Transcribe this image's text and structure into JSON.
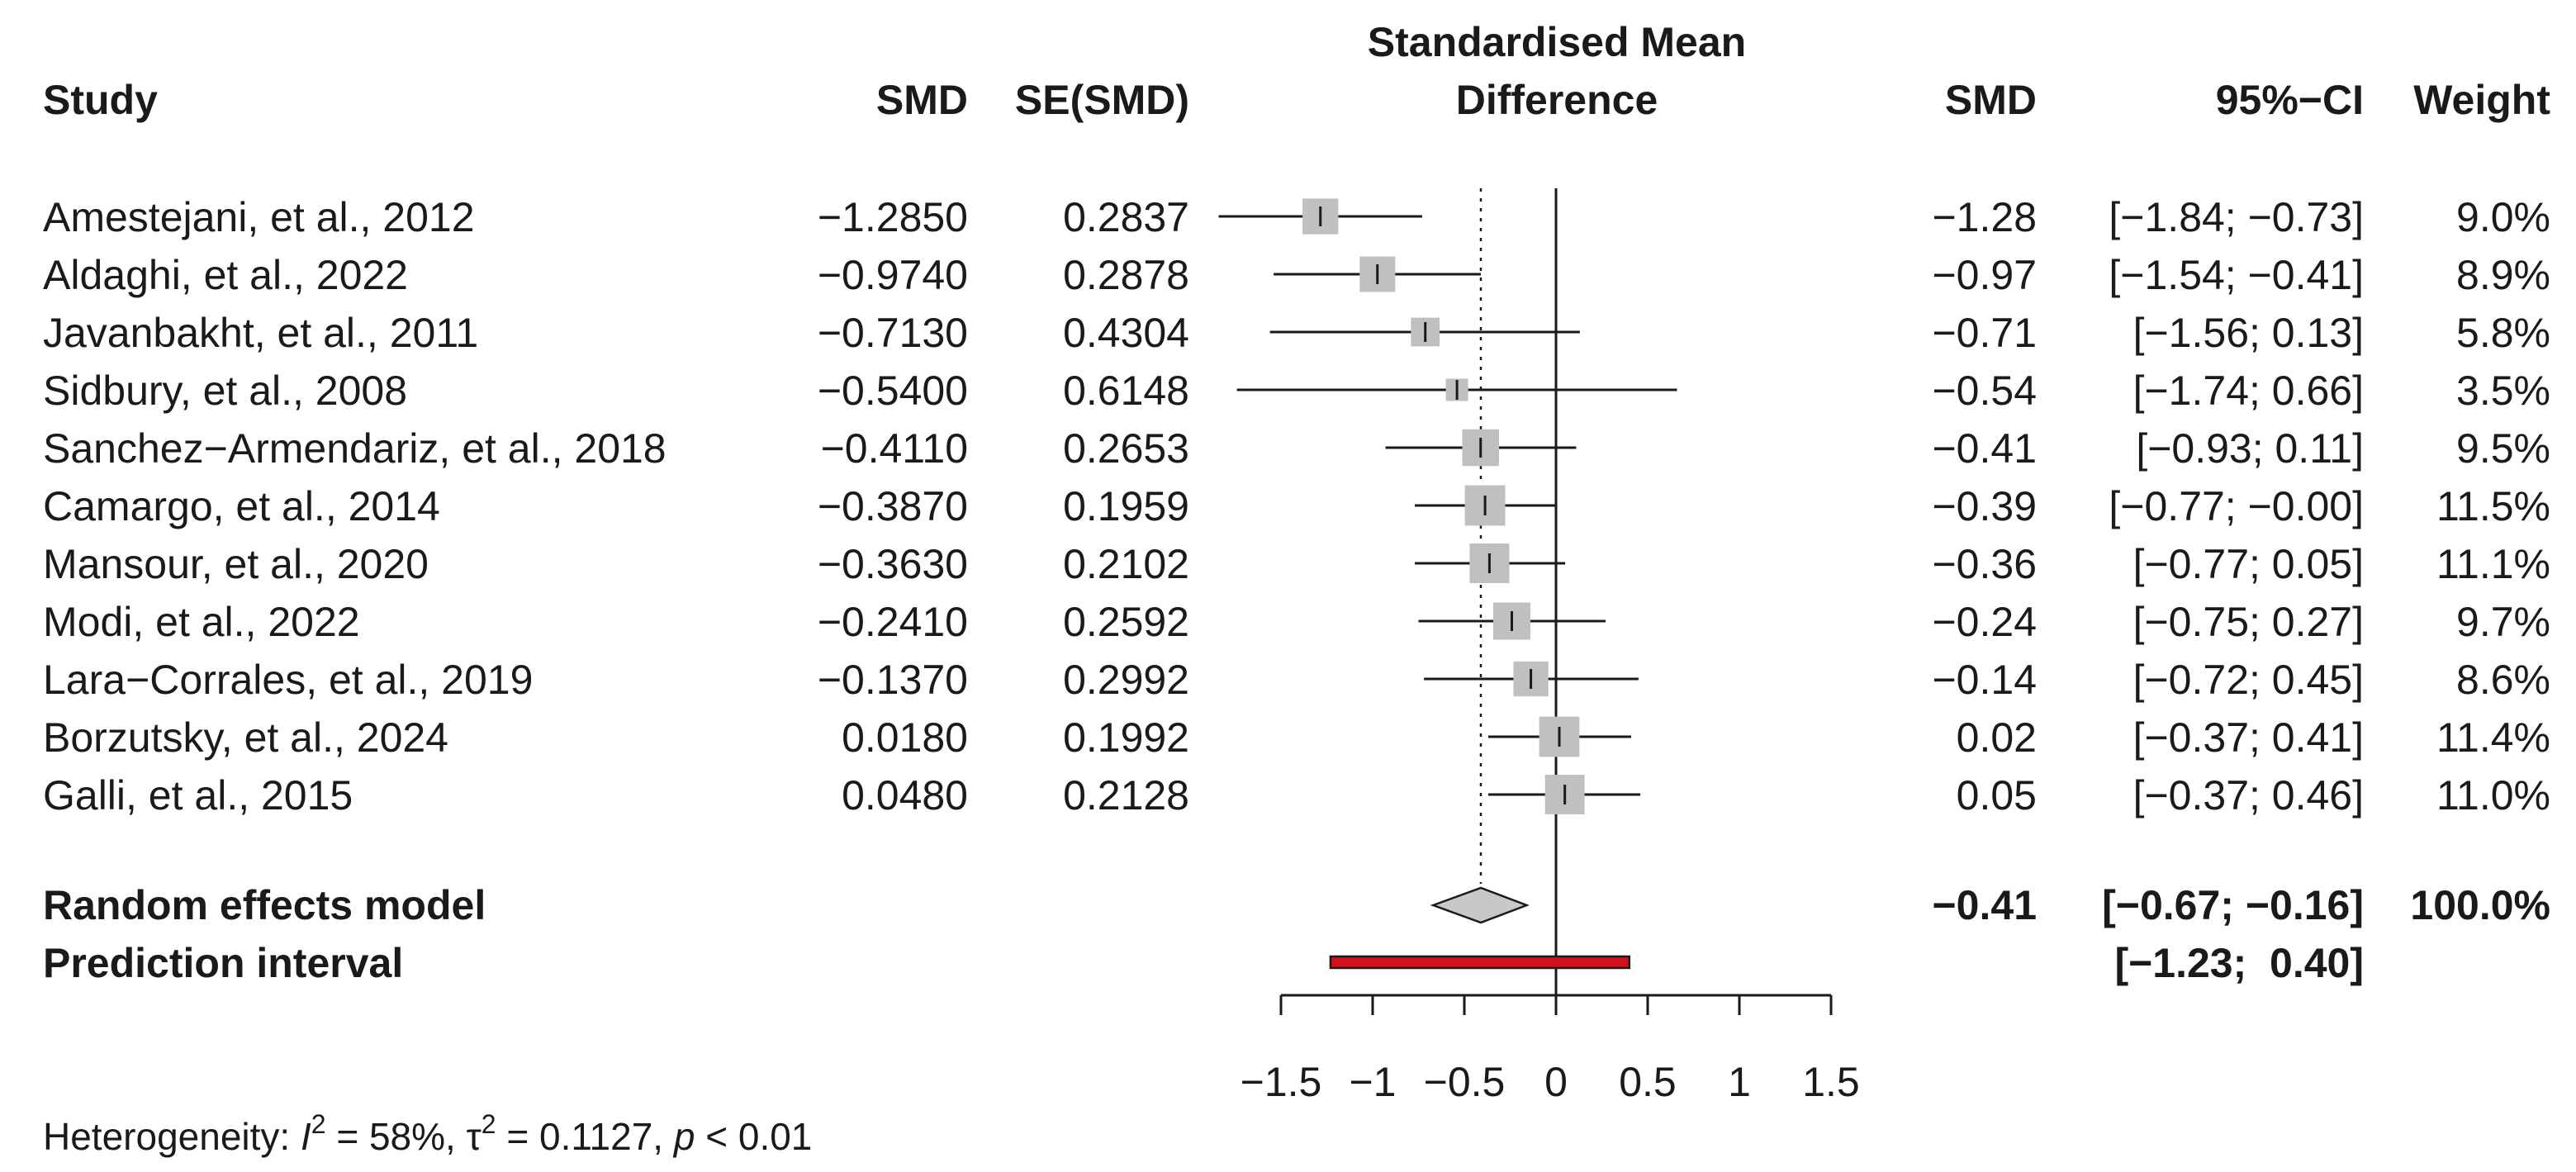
{
  "chart_data": {
    "type": "forest",
    "title": "Standardised Mean Difference",
    "headers": {
      "study": "Study",
      "smd": "SMD",
      "se": "SE(SMD)",
      "plot_line1": "Standardised Mean",
      "plot_line2": "Difference",
      "smd_right": "SMD",
      "ci": "95%−CI",
      "weight": "Weight"
    },
    "studies": [
      {
        "name": "Amestejani, et al., 2012",
        "smd": "−1.2850",
        "se": "0.2837",
        "smd_r": "−1.28",
        "ci": "[−1.84; −0.73]",
        "weight": "9.0%",
        "est": -1.285,
        "lo": -1.84,
        "hi": -0.73,
        "w": 9.0
      },
      {
        "name": "Aldaghi, et al., 2022",
        "smd": "−0.9740",
        "se": "0.2878",
        "smd_r": "−0.97",
        "ci": "[−1.54; −0.41]",
        "weight": "8.9%",
        "est": -0.974,
        "lo": -1.54,
        "hi": -0.41,
        "w": 8.9
      },
      {
        "name": "Javanbakht, et al., 2011",
        "smd": "−0.7130",
        "se": "0.4304",
        "smd_r": "−0.71",
        "ci": "[−1.56;  0.13]",
        "weight": "5.8%",
        "est": -0.713,
        "lo": -1.56,
        "hi": 0.13,
        "w": 5.8
      },
      {
        "name": "Sidbury, et al., 2008",
        "smd": "−0.5400",
        "se": "0.6148",
        "smd_r": "−0.54",
        "ci": "[−1.74;  0.66]",
        "weight": "3.5%",
        "est": -0.54,
        "lo": -1.74,
        "hi": 0.66,
        "w": 3.5
      },
      {
        "name": "Sanchez−Armendariz, et al., 2018",
        "smd": "−0.4110",
        "se": "0.2653",
        "smd_r": "−0.41",
        "ci": "[−0.93;  0.11]",
        "weight": "9.5%",
        "est": -0.411,
        "lo": -0.93,
        "hi": 0.11,
        "w": 9.5
      },
      {
        "name": "Camargo, et al., 2014",
        "smd": "−0.3870",
        "se": "0.1959",
        "smd_r": "−0.39",
        "ci": "[−0.77; −0.00]",
        "weight": "11.5%",
        "est": -0.387,
        "lo": -0.77,
        "hi": -0.004,
        "w": 11.5
      },
      {
        "name": "Mansour, et al., 2020",
        "smd": "−0.3630",
        "se": "0.2102",
        "smd_r": "−0.36",
        "ci": "[−0.77;  0.05]",
        "weight": "11.1%",
        "est": -0.363,
        "lo": -0.77,
        "hi": 0.05,
        "w": 11.1
      },
      {
        "name": "Modi, et al., 2022",
        "smd": "−0.2410",
        "se": "0.2592",
        "smd_r": "−0.24",
        "ci": "[−0.75;  0.27]",
        "weight": "9.7%",
        "est": -0.241,
        "lo": -0.75,
        "hi": 0.27,
        "w": 9.7
      },
      {
        "name": "Lara−Corrales, et al., 2019",
        "smd": "−0.1370",
        "se": "0.2992",
        "smd_r": "−0.14",
        "ci": "[−0.72;  0.45]",
        "weight": "8.6%",
        "est": -0.137,
        "lo": -0.72,
        "hi": 0.45,
        "w": 8.6
      },
      {
        "name": "Borzutsky, et al., 2024",
        "smd": "0.0180",
        "se": "0.1992",
        "smd_r": "0.02",
        "ci": "[−0.37;  0.41]",
        "weight": "11.4%",
        "est": 0.018,
        "lo": -0.37,
        "hi": 0.41,
        "w": 11.4
      },
      {
        "name": "Galli, et al., 2015",
        "smd": "0.0480",
        "se": "0.2128",
        "smd_r": "0.05",
        "ci": "[−0.37;  0.46]",
        "weight": "11.0%",
        "est": 0.048,
        "lo": -0.37,
        "hi": 0.46,
        "w": 11.0
      }
    ],
    "random_effects": {
      "label": "Random effects model",
      "smd_r": "−0.41",
      "ci": "[−0.67; −0.16]",
      "weight": "100.0%",
      "est": -0.41,
      "lo": -0.67,
      "hi": -0.16
    },
    "prediction_interval": {
      "label": "Prediction interval",
      "ci": "[−1.23;  0.40]",
      "lo": -1.23,
      "hi": 0.4
    },
    "x_axis": {
      "min": -1.5,
      "max": 1.5,
      "ticks": [
        -1.5,
        -1,
        -0.5,
        0,
        0.5,
        1,
        1.5
      ],
      "tick_labels": [
        "−1.5",
        "−1",
        "−0.5",
        "0",
        "0.5",
        "1",
        "1.5"
      ]
    },
    "heterogeneity": {
      "prefix": "Heterogeneity: ",
      "i2_symbol": "I",
      "i2_value": " = 58%, ",
      "tau_symbol": "τ",
      "tau_value": " = 0.1127, ",
      "p_symbol": "p",
      "p_value": " < 0.01"
    },
    "colors": {
      "box": "#c0c0c0",
      "diamond": "#c8c8c8",
      "prediction_fill": "#d0111b",
      "line": "#1a1a1a"
    }
  }
}
